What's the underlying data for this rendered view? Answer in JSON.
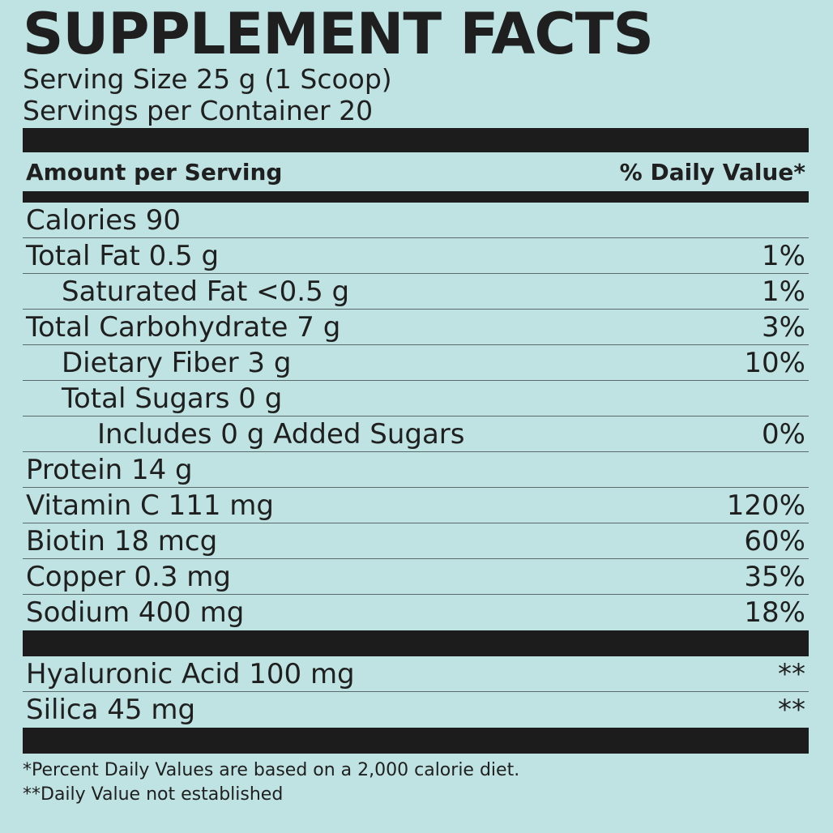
{
  "title": "SUPPLEMENT FACTS",
  "serving_size": "Serving Size 25 g (1 Scoop)",
  "servings_per_container": "Servings per Container 20",
  "header": {
    "amount": "Amount per Serving",
    "dv": "% Daily Value*"
  },
  "rows": [
    {
      "label": "Calories 90"
    },
    {
      "label": "Total Fat 0.5 g",
      "dv": "1%"
    },
    {
      "label": "Saturated Fat <0.5 g",
      "dv": "1%"
    },
    {
      "label": "Total Carbohydrate 7 g",
      "dv": "3%"
    },
    {
      "label": "Dietary Fiber 3 g",
      "dv": "10%"
    },
    {
      "label": "Total Sugars 0 g"
    },
    {
      "label": "Includes 0 g Added Sugars",
      "dv": "0%"
    },
    {
      "label": "Protein 14 g"
    },
    {
      "label": "Vitamin C 111 mg",
      "dv": "120%"
    },
    {
      "label": "Biotin 18 mcg",
      "dv": "60%"
    },
    {
      "label": "Copper 0.3 mg",
      "dv": "35%"
    },
    {
      "label": "Sodium 400 mg",
      "dv": "18%"
    }
  ],
  "other_rows": [
    {
      "label": "Hyaluronic Acid 100 mg",
      "dv": "**"
    },
    {
      "label": "Silica 45 mg",
      "dv": "**"
    }
  ],
  "footnotes": [
    "*Percent Daily Values are based on a 2,000 calorie diet.",
    "**Daily Value not established"
  ]
}
